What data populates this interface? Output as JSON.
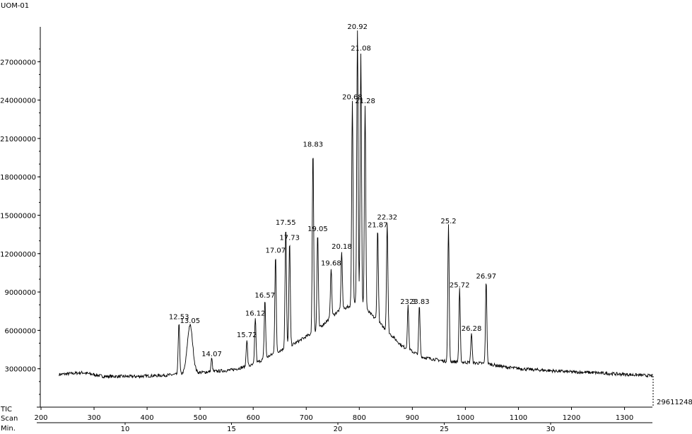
{
  "chart_data": {
    "type": "line",
    "title": "UOM-01",
    "trace_label": "TIC",
    "max_value_label": "29611248",
    "y_axis": {
      "min": 0,
      "max": 29611248,
      "ticks": [
        3000000,
        6000000,
        9000000,
        12000000,
        15000000,
        18000000,
        21000000,
        24000000,
        27000000
      ],
      "tick_labels": [
        "3000000",
        "6000000",
        "9000000",
        "12000000",
        "15000000",
        "18000000",
        "21000000",
        "24000000",
        "27000000"
      ]
    },
    "scan_axis": {
      "label": "Scan",
      "min": 200,
      "max": 1350,
      "ticks": [
        200,
        300,
        400,
        500,
        600,
        700,
        800,
        900,
        1000,
        1100,
        1200,
        1300
      ],
      "tick_labels": [
        "200",
        "300",
        "400",
        "500",
        "600",
        "700",
        "800",
        "900",
        "1000",
        "1100",
        "1200",
        "1300"
      ]
    },
    "time_axis": {
      "label": "Min.",
      "ticks": [
        10,
        15,
        20,
        25,
        30
      ],
      "tick_labels": [
        "10",
        "15",
        "20",
        "25",
        "30"
      ]
    },
    "peaks": [
      {
        "label": "12.53",
        "rt": 12.53,
        "intensity": 6700000
      },
      {
        "label": "13.05",
        "rt": 13.05,
        "intensity": 6400000
      },
      {
        "label": "14.07",
        "rt": 14.07,
        "intensity": 3800000
      },
      {
        "label": "15.72",
        "rt": 15.72,
        "intensity": 5300000
      },
      {
        "label": "16.12",
        "rt": 16.12,
        "intensity": 7000000
      },
      {
        "label": "16.57",
        "rt": 16.57,
        "intensity": 8400000
      },
      {
        "label": "17.07",
        "rt": 17.07,
        "intensity": 11900000
      },
      {
        "label": "17.55",
        "rt": 17.55,
        "intensity": 14100000
      },
      {
        "label": "17.73",
        "rt": 17.73,
        "intensity": 12900000
      },
      {
        "label": "18.83",
        "rt": 18.83,
        "intensity": 20200000
      },
      {
        "label": "19.05",
        "rt": 19.05,
        "intensity": 13600000
      },
      {
        "label": "19.68",
        "rt": 19.68,
        "intensity": 10900000
      },
      {
        "label": "20.18",
        "rt": 20.18,
        "intensity": 12200000
      },
      {
        "label": "20.68",
        "rt": 20.68,
        "intensity": 23900000
      },
      {
        "label": "20.92",
        "rt": 20.92,
        "intensity": 29400000
      },
      {
        "label": "21.08",
        "rt": 21.08,
        "intensity": 27700000
      },
      {
        "label": "21.28",
        "rt": 21.28,
        "intensity": 23600000
      },
      {
        "label": "21.87",
        "rt": 21.87,
        "intensity": 13900000
      },
      {
        "label": "22.32",
        "rt": 22.32,
        "intensity": 14500000
      },
      {
        "label": "23.3",
        "rt": 23.3,
        "intensity": 7900000
      },
      {
        "label": "23.83",
        "rt": 23.83,
        "intensity": 7900000
      },
      {
        "label": "25.2",
        "rt": 25.2,
        "intensity": 14200000
      },
      {
        "label": "25.72",
        "rt": 25.72,
        "intensity": 9200000
      },
      {
        "label": "26.28",
        "rt": 26.28,
        "intensity": 5800000
      },
      {
        "label": "26.97",
        "rt": 26.97,
        "intensity": 9900000
      }
    ],
    "baseline": [
      {
        "rt": 6.9,
        "intensity": 2550000
      },
      {
        "rt": 8.0,
        "intensity": 2700000
      },
      {
        "rt": 9.0,
        "intensity": 2400000
      },
      {
        "rt": 10.5,
        "intensity": 2400000
      },
      {
        "rt": 12.0,
        "intensity": 2500000
      },
      {
        "rt": 13.5,
        "intensity": 2700000
      },
      {
        "rt": 15.0,
        "intensity": 2900000
      },
      {
        "rt": 16.0,
        "intensity": 3300000
      },
      {
        "rt": 17.0,
        "intensity": 4200000
      },
      {
        "rt": 18.0,
        "intensity": 5000000
      },
      {
        "rt": 19.0,
        "intensity": 6000000
      },
      {
        "rt": 20.0,
        "intensity": 7500000
      },
      {
        "rt": 21.0,
        "intensity": 8200000
      },
      {
        "rt": 22.0,
        "intensity": 6500000
      },
      {
        "rt": 23.0,
        "intensity": 4800000
      },
      {
        "rt": 24.0,
        "intensity": 3900000
      },
      {
        "rt": 25.0,
        "intensity": 3600000
      },
      {
        "rt": 26.0,
        "intensity": 3500000
      },
      {
        "rt": 27.0,
        "intensity": 3400000
      },
      {
        "rt": 28.0,
        "intensity": 3100000
      },
      {
        "rt": 29.0,
        "intensity": 2950000
      },
      {
        "rt": 30.0,
        "intensity": 2850000
      },
      {
        "rt": 31.0,
        "intensity": 2750000
      },
      {
        "rt": 32.0,
        "intensity": 2700000
      },
      {
        "rt": 33.0,
        "intensity": 2600000
      },
      {
        "rt": 34.8,
        "intensity": 2450000
      }
    ]
  }
}
